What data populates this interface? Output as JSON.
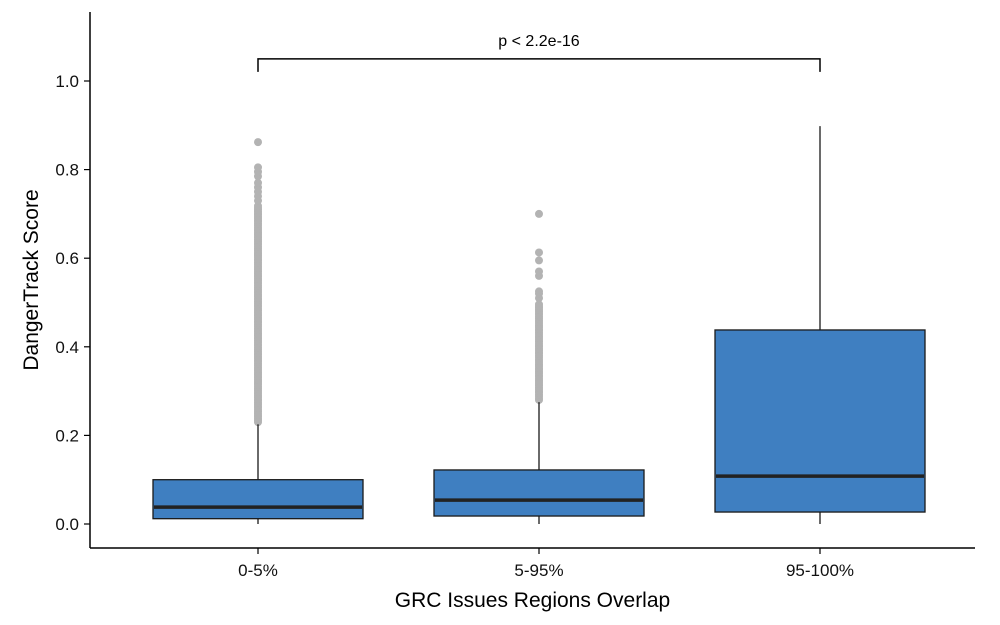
{
  "chart_data": {
    "type": "boxplot",
    "xlabel": "GRC Issues Regions Overlap",
    "ylabel": "DangerTrack Score",
    "ylim": [
      -0.05,
      1.15
    ],
    "yticks": [
      0.0,
      0.2,
      0.4,
      0.6,
      0.8,
      1.0
    ],
    "ytick_labels": [
      "0.0",
      "0.2",
      "0.4",
      "0.6",
      "0.8",
      "1.0"
    ],
    "categories": [
      "0-5%",
      "5-95%",
      "95-100%"
    ],
    "box_color": "#3f7fc1",
    "outlier_color": "#b3b3b3",
    "grid": false,
    "boxes": [
      {
        "category": "0-5%",
        "whisker_low": 0.0,
        "q1": 0.012,
        "median": 0.038,
        "q3": 0.1,
        "whisker_high": 0.225,
        "outliers_dense_range": [
          0.23,
          0.72
        ],
        "outliers": [
          0.73,
          0.74,
          0.75,
          0.76,
          0.77,
          0.785,
          0.795,
          0.805,
          0.862
        ]
      },
      {
        "category": "5-95%",
        "whisker_low": 0.0,
        "q1": 0.018,
        "median": 0.054,
        "q3": 0.122,
        "whisker_high": 0.275,
        "outliers_dense_range": [
          0.28,
          0.5
        ],
        "outliers": [
          0.51,
          0.52,
          0.525,
          0.56,
          0.57,
          0.595,
          0.613,
          0.7
        ]
      },
      {
        "category": "95-100%",
        "whisker_low": 0.0,
        "q1": 0.027,
        "median": 0.108,
        "q3": 0.438,
        "whisker_high": 0.898,
        "outliers_dense_range": null,
        "outliers": []
      }
    ],
    "annotation": {
      "text": "p < 2.2e-16",
      "from_category": "0-5%",
      "to_category": "95-100%",
      "y": 1.05
    }
  }
}
